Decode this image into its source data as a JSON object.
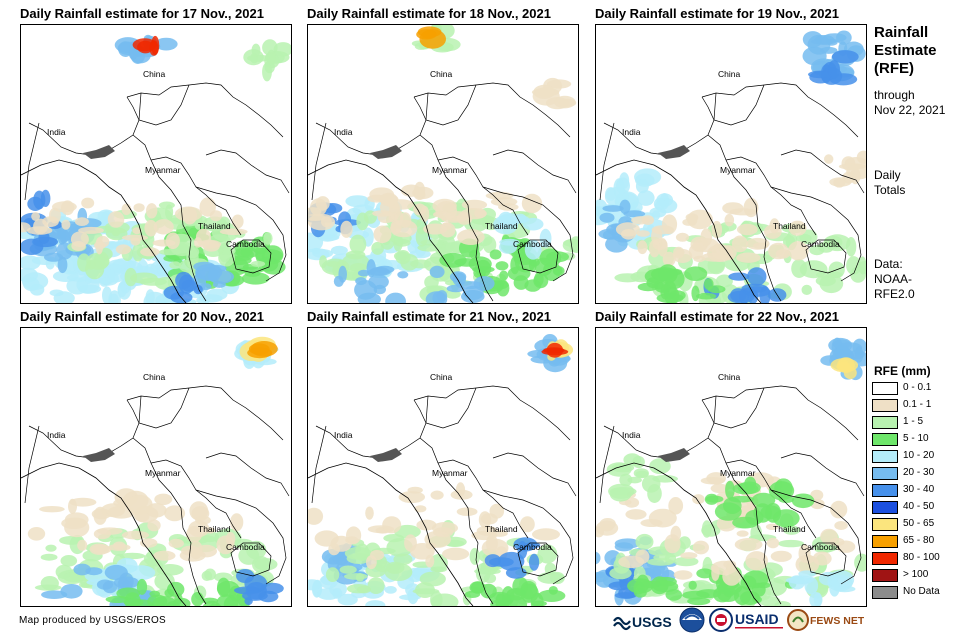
{
  "panels": [
    {
      "title": "Daily Rainfall estimate for 17 Nov., 2021"
    },
    {
      "title": "Daily Rainfall estimate for 18 Nov., 2021"
    },
    {
      "title": "Daily Rainfall estimate for 19 Nov., 2021"
    },
    {
      "title": "Daily Rainfall estimate for 20 Nov., 2021"
    },
    {
      "title": "Daily Rainfall estimate for 21 Nov., 2021"
    },
    {
      "title": "Daily Rainfall estimate for 22 Nov., 2021"
    }
  ],
  "map_labels": {
    "china": "China",
    "india": "India",
    "myanmar": "Myanmar",
    "thailand": "Thailand",
    "cambodia": "Cambodia"
  },
  "side": {
    "heading_line1": "Rainfall",
    "heading_line2": "Estimate",
    "heading_line3": "(RFE)",
    "through_line1": "through",
    "through_line2": "Nov 22, 2021",
    "daily_line1": "Daily",
    "daily_line2": "Totals",
    "data_line1": "Data:",
    "data_line2": "NOAA-",
    "data_line3": "RFE2.0"
  },
  "legend": {
    "title": "RFE (mm)",
    "items": [
      {
        "label": "0 - 0.1",
        "color": "#ffffff"
      },
      {
        "label": "0.1 - 1",
        "color": "#efe0c6"
      },
      {
        "label": "1 - 5",
        "color": "#b8f2b0"
      },
      {
        "label": "5 - 10",
        "color": "#6ee66a"
      },
      {
        "label": "10 - 20",
        "color": "#b4ecfa"
      },
      {
        "label": "20 - 30",
        "color": "#76bcf0"
      },
      {
        "label": "30 - 40",
        "color": "#4690ea"
      },
      {
        "label": "40 - 50",
        "color": "#1c50e0"
      },
      {
        "label": "50 - 65",
        "color": "#fbe57e"
      },
      {
        "label": "65 - 80",
        "color": "#f7a000"
      },
      {
        "label": "80 - 100",
        "color": "#f02800"
      },
      {
        "label": "> 100",
        "color": "#a01414"
      },
      {
        "label": "No Data",
        "color": "#8c8c8c"
      }
    ]
  },
  "footer": "Map produced by USGS/EROS",
  "logos": {
    "usgs": "USGS",
    "usaid": "USAID",
    "fewsnet": "FEWS NET"
  }
}
